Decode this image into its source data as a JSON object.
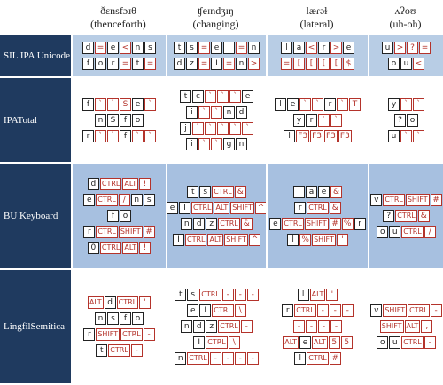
{
  "header": {
    "columns": [
      {
        "word": "ðɛnsfɔɹθ",
        "gloss": "(thenceforth)"
      },
      {
        "word": "ʧeɪndʒɪŋ",
        "gloss": "(changing)"
      },
      {
        "word": "læɾəɫ",
        "gloss": "(lateral)"
      },
      {
        "word": "ʌʔoʊ",
        "gloss": "(uh-oh)"
      }
    ]
  },
  "rows": [
    {
      "label": "SIL IPA Unicode",
      "background": "#b8cde5",
      "cells": [
        {
          "lines": [
            {
              "keys": [
                "d",
                "=",
                "e",
                "<",
                "n",
                "s"
              ],
              "colors": [
                "#222",
                "#b4332b",
                "#222",
                "#b4332b",
                "#222",
                "#222"
              ]
            },
            {
              "keys": [
                "f",
                "o",
                "r",
                "=",
                "t",
                "="
              ],
              "colors": [
                "#222",
                "#222",
                "#222",
                "#b4332b",
                "#222",
                "#b4332b"
              ]
            }
          ]
        },
        {
          "lines": [
            {
              "keys": [
                "t",
                "s",
                "=",
                "e",
                "i",
                "=",
                "n"
              ],
              "colors": [
                "#222",
                "#222",
                "#b4332b",
                "#222",
                "#222",
                "#b4332b",
                "#222"
              ]
            },
            {
              "keys": [
                "d",
                "z",
                "=",
                "I",
                "=",
                "n",
                ">"
              ],
              "colors": [
                "#222",
                "#222",
                "#b4332b",
                "#222",
                "#b4332b",
                "#222",
                "#b4332b"
              ]
            }
          ]
        },
        {
          "lines": [
            {
              "keys": [
                "l",
                "a",
                "<",
                "r",
                ">",
                "e"
              ],
              "colors": [
                "#222",
                "#222",
                "#b4332b",
                "#222",
                "#b4332b",
                "#222"
              ]
            },
            {
              "keys": [
                "=",
                "[",
                "[",
                "[",
                "[",
                "$"
              ],
              "colors": [
                "#b4332b",
                "#b4332b",
                "#b4332b",
                "#b4332b",
                "#b4332b",
                "#b4332b"
              ]
            }
          ]
        },
        {
          "lines": [
            {
              "keys": [
                "u",
                ">",
                "?",
                "="
              ],
              "colors": [
                "#222",
                "#b4332b",
                "#b4332b",
                "#b4332b"
              ]
            },
            {
              "keys": [
                "o",
                "u",
                "<"
              ],
              "colors": [
                "#222",
                "#222",
                "#b4332b"
              ]
            }
          ]
        }
      ]
    },
    {
      "label": "IPATotal",
      "background": "#ffffff",
      "cells": [
        {
          "lines": [
            {
              "keys": [
                "f",
                "`",
                "`",
                "S",
                "e",
                "`"
              ],
              "colors": [
                "#222",
                "#b4332b",
                "#b4332b",
                "#b4332b",
                "#222",
                "#b4332b"
              ]
            },
            {
              "keys": [
                "n",
                "S",
                "f",
                "o"
              ],
              "colors": [
                "#222",
                "#222",
                "#222",
                "#222"
              ]
            },
            {
              "keys": [
                "r",
                "`",
                "`",
                "f",
                "`",
                "`"
              ],
              "colors": [
                "#222",
                "#b4332b",
                "#b4332b",
                "#222",
                "#b4332b",
                "#b4332b"
              ]
            }
          ]
        },
        {
          "lines": [
            {
              "keys": [
                "t",
                "c",
                "`",
                "`",
                "`",
                "e"
              ],
              "colors": [
                "#222",
                "#222",
                "#b4332b",
                "#b4332b",
                "#b4332b",
                "#222"
              ]
            },
            {
              "keys": [
                "i",
                "`",
                "`",
                "n",
                "d"
              ],
              "colors": [
                "#222",
                "#b4332b",
                "#b4332b",
                "#222",
                "#222"
              ]
            },
            {
              "keys": [
                "j",
                "`",
                "`",
                "`",
                "`",
                "`"
              ],
              "colors": [
                "#222",
                "#b4332b",
                "#b4332b",
                "#b4332b",
                "#b4332b",
                "#b4332b"
              ]
            },
            {
              "keys": [
                "i",
                "`",
                "`",
                "g",
                "n"
              ],
              "colors": [
                "#222",
                "#b4332b",
                "#b4332b",
                "#222",
                "#222"
              ]
            }
          ]
        },
        {
          "lines": [
            {
              "keys": [
                "l",
                "e",
                "`",
                "`",
                "r",
                "`",
                "T"
              ],
              "colors": [
                "#222",
                "#222",
                "#b4332b",
                "#b4332b",
                "#222",
                "#b4332b",
                "#b4332b"
              ]
            },
            {
              "keys": [
                "y",
                "r",
                "`",
                "`"
              ],
              "colors": [
                "#222",
                "#222",
                "#b4332b",
                "#b4332b"
              ]
            },
            {
              "keys": [
                "l",
                "F3",
                "F3",
                "F3",
                "F3"
              ],
              "colors": [
                "#222",
                "#b4332b",
                "#b4332b",
                "#b4332b",
                "#b4332b"
              ]
            }
          ]
        },
        {
          "lines": [
            {
              "keys": [
                "y",
                "`",
                "`"
              ],
              "colors": [
                "#222",
                "#b4332b",
                "#b4332b"
              ]
            },
            {
              "keys": [
                "?",
                "o"
              ],
              "colors": [
                "#222",
                "#222"
              ]
            },
            {
              "keys": [
                "u",
                "`",
                "`"
              ],
              "colors": [
                "#222",
                "#b4332b",
                "#b4332b"
              ]
            }
          ]
        }
      ]
    },
    {
      "label": "BU Keyboard",
      "background": "#a7c0e0",
      "cells": [
        {
          "lines": [
            {
              "keys": [
                "d",
                "CTRL",
                "ALT",
                "!"
              ],
              "colors": [
                "#222",
                "#b4332b",
                "#b4332b",
                "#b4332b"
              ]
            },
            {
              "keys": [
                "e",
                "CTRL",
                "/",
                "n",
                "s"
              ],
              "colors": [
                "#222",
                "#b4332b",
                "#b4332b",
                "#222",
                "#222"
              ]
            },
            {
              "keys": [
                "f",
                "o"
              ],
              "colors": [
                "#222",
                "#222"
              ]
            },
            {
              "keys": [
                "r",
                "CTRL",
                "SHIFT",
                "#"
              ],
              "colors": [
                "#222",
                "#b4332b",
                "#b4332b",
                "#b4332b"
              ]
            },
            {
              "keys": [
                "0",
                "CTRL",
                "ALT",
                "!"
              ],
              "colors": [
                "#222",
                "#b4332b",
                "#b4332b",
                "#b4332b"
              ]
            }
          ]
        },
        {
          "lines": [
            {
              "keys": [
                "t",
                "s",
                "CTRL",
                "&"
              ],
              "colors": [
                "#222",
                "#222",
                "#b4332b",
                "#b4332b"
              ]
            },
            {
              "keys": [
                "e",
                "I",
                "CTRL",
                "ALT",
                "SHIFT",
                "^"
              ],
              "colors": [
                "#222",
                "#222",
                "#b4332b",
                "#b4332b",
                "#b4332b",
                "#b4332b"
              ]
            },
            {
              "keys": [
                "n",
                "d",
                "z",
                "CTRL",
                "&"
              ],
              "colors": [
                "#222",
                "#222",
                "#222",
                "#b4332b",
                "#b4332b"
              ]
            },
            {
              "keys": [
                "I",
                "CTRL",
                "ALT",
                "SHIFT",
                "^"
              ],
              "colors": [
                "#222",
                "#b4332b",
                "#b4332b",
                "#b4332b",
                "#b4332b"
              ]
            }
          ]
        },
        {
          "lines": [
            {
              "keys": [
                "l",
                "a",
                "e",
                "&"
              ],
              "colors": [
                "#222",
                "#222",
                "#222",
                "#b4332b"
              ]
            },
            {
              "keys": [
                "r",
                "CTRL",
                "&"
              ],
              "colors": [
                "#222",
                "#b4332b",
                "#b4332b"
              ]
            },
            {
              "keys": [
                "e",
                "CTRL",
                "SHIFT",
                "#",
                "%",
                "r"
              ],
              "colors": [
                "#222",
                "#b4332b",
                "#b4332b",
                "#b4332b",
                "#b4332b",
                "#222"
              ]
            },
            {
              "keys": [
                "l",
                "%",
                "SHIFT",
                "'"
              ],
              "colors": [
                "#222",
                "#b4332b",
                "#b4332b",
                "#b4332b"
              ]
            }
          ]
        },
        {
          "lines": [
            {
              "keys": [
                "v",
                "CTRL",
                "SHIFT",
                "#"
              ],
              "colors": [
                "#222",
                "#b4332b",
                "#b4332b",
                "#b4332b"
              ]
            },
            {
              "keys": [
                "?",
                "CTRL",
                "&"
              ],
              "colors": [
                "#222",
                "#b4332b",
                "#b4332b"
              ]
            },
            {
              "keys": [
                "o",
                "u",
                "CTRL",
                "/"
              ],
              "colors": [
                "#222",
                "#222",
                "#b4332b",
                "#b4332b"
              ]
            }
          ]
        }
      ]
    },
    {
      "label": "LingfilSemitica",
      "background": "#ffffff",
      "cells": [
        {
          "lines": [
            {
              "keys": [
                "ALT",
                "d",
                "CTRL",
                "'"
              ],
              "colors": [
                "#b4332b",
                "#222",
                "#b4332b",
                "#b4332b"
              ]
            },
            {
              "keys": [
                "n",
                "s",
                "f",
                "o"
              ],
              "colors": [
                "#222",
                "#222",
                "#222",
                "#222"
              ]
            },
            {
              "keys": [
                "r",
                "SHIFT",
                "CTRL",
                "-"
              ],
              "colors": [
                "#222",
                "#b4332b",
                "#b4332b",
                "#b4332b"
              ]
            },
            {
              "keys": [
                "t",
                "CTRL",
                "-"
              ],
              "colors": [
                "#222",
                "#b4332b",
                "#b4332b"
              ]
            }
          ]
        },
        {
          "lines": [
            {
              "keys": [
                "t",
                "s",
                "CTRL",
                "-",
                "-",
                "-"
              ],
              "colors": [
                "#222",
                "#222",
                "#b4332b",
                "#b4332b",
                "#b4332b",
                "#b4332b"
              ]
            },
            {
              "keys": [
                "e",
                "I",
                "CTRL",
                "\\"
              ],
              "colors": [
                "#222",
                "#222",
                "#b4332b",
                "#b4332b"
              ]
            },
            {
              "keys": [
                "n",
                "d",
                "z",
                "CTRL",
                "-"
              ],
              "colors": [
                "#222",
                "#222",
                "#222",
                "#b4332b",
                "#b4332b"
              ]
            },
            {
              "keys": [
                "I",
                "CTRL",
                "\\"
              ],
              "colors": [
                "#222",
                "#b4332b",
                "#b4332b"
              ]
            },
            {
              "keys": [
                "n",
                "CTRL",
                "-",
                "-",
                "-",
                "-"
              ],
              "colors": [
                "#222",
                "#b4332b",
                "#b4332b",
                "#b4332b",
                "#b4332b",
                "#b4332b"
              ]
            }
          ]
        },
        {
          "lines": [
            {
              "keys": [
                "l",
                "ALT",
                "'"
              ],
              "colors": [
                "#222",
                "#b4332b",
                "#b4332b"
              ]
            },
            {
              "keys": [
                "r",
                "CTRL",
                "-",
                "-",
                "-"
              ],
              "colors": [
                "#222",
                "#b4332b",
                "#b4332b",
                "#b4332b",
                "#b4332b"
              ]
            },
            {
              "keys": [
                "-",
                "-",
                "-",
                "-"
              ],
              "colors": [
                "#b4332b",
                "#b4332b",
                "#b4332b",
                "#b4332b"
              ]
            },
            {
              "keys": [
                "ALT",
                "e",
                "ALT",
                "5",
                "5"
              ],
              "colors": [
                "#b4332b",
                "#222",
                "#b4332b",
                "#b4332b",
                "#b4332b"
              ]
            },
            {
              "keys": [
                "l",
                "CTRL",
                "#"
              ],
              "colors": [
                "#222",
                "#b4332b",
                "#b4332b"
              ]
            }
          ]
        },
        {
          "lines": [
            {
              "keys": [
                "v",
                "SHIFT",
                "CTRL",
                "-"
              ],
              "colors": [
                "#222",
                "#b4332b",
                "#b4332b",
                "#b4332b"
              ]
            },
            {
              "keys": [
                "SHIFT",
                "ALT",
                ","
              ],
              "colors": [
                "#b4332b",
                "#b4332b",
                "#b4332b"
              ]
            },
            {
              "keys": [
                "o",
                "u",
                "CTRL",
                "-"
              ],
              "colors": [
                "#222",
                "#222",
                "#b4332b",
                "#b4332b"
              ]
            }
          ]
        }
      ]
    }
  ]
}
